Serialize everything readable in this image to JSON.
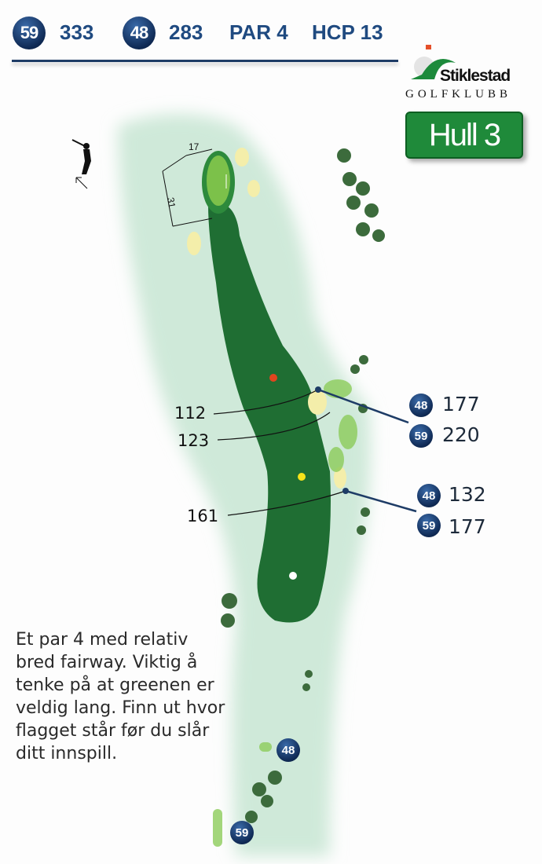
{
  "header": {
    "tees": [
      {
        "tee": "59",
        "length": "333"
      },
      {
        "tee": "48",
        "length": "283"
      }
    ],
    "par": "PAR 4",
    "hcp": "HCP 13"
  },
  "logo": {
    "name": "Stiklestad",
    "sub": "GOLFKLUBB"
  },
  "hole_label": "Hull 3",
  "green": {
    "width": "17",
    "depth": "31"
  },
  "hazard_distances_left": [
    "112",
    "123",
    "161"
  ],
  "hazard_distances_right": [
    {
      "tee": "48",
      "value": "177"
    },
    {
      "tee": "59",
      "value": "220"
    },
    {
      "tee": "48",
      "value": "132"
    },
    {
      "tee": "59",
      "value": "177"
    }
  ],
  "tee_markers": [
    "48",
    "59"
  ],
  "description": "Et par 4 med relativ bred fairway. Viktig å tenke på at greenen er veldig lang. Finn ut hvor flagget står før du slår ditt innspill.",
  "colors": {
    "rough": "#cfe9d9",
    "fairway": "#1f6e33",
    "green": "#7cc14a",
    "bunker": "#f4eeaa",
    "badge": "#0f2a55",
    "header_text": "#1f4a80"
  }
}
